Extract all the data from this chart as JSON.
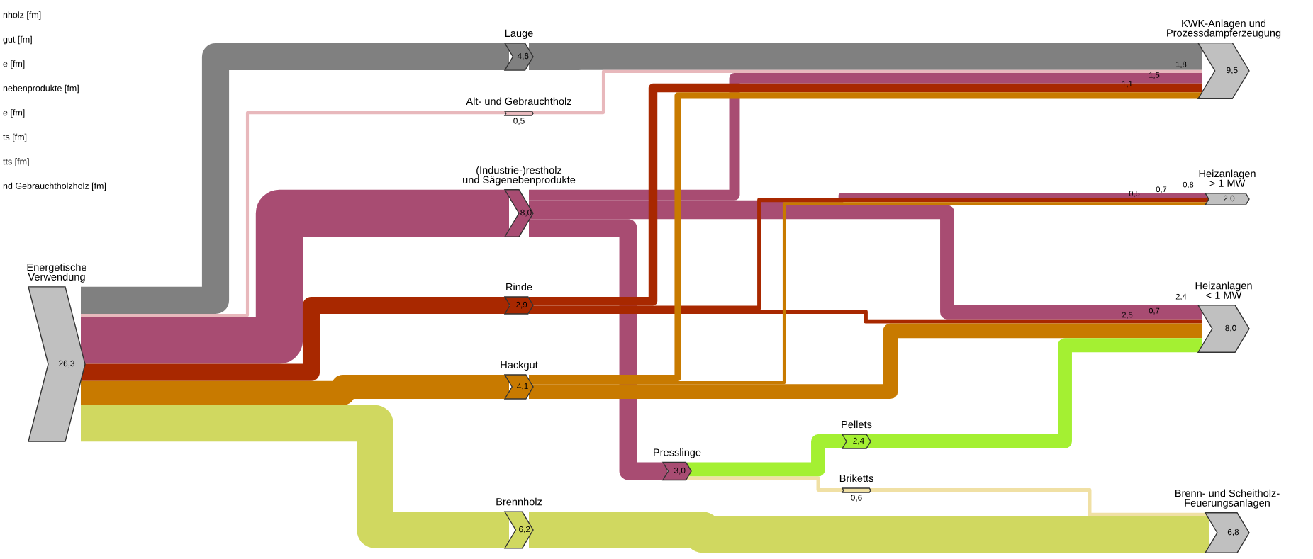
{
  "chart_data": {
    "type": "other",
    "categories": [
      "Energetische\nVerwendung",
      "Lauge",
      "Alt- und Gebrauchtholz",
      "(Industrie-)restholz\nund Sägenebenprodukte",
      "Rinde",
      "Hackgut",
      "Brennholz",
      "Presslinge",
      "Pellets",
      "Briketts",
      "KWK-Anlagen und\nProzessdampferzeugung",
      "Heizanlagen\n> 1 MW",
      "Heizanlagen\n< 1 MW",
      "Brenn- und Scheitholz-\nFeuerungsanlagen"
    ],
    "values": [
      26.3,
      null,
      null,
      null,
      null,
      null,
      null,
      null,
      null,
      null,
      9.5,
      2.0,
      8.0,
      6.8
    ],
    "value_labels": [
      "26,3",
      null,
      null,
      null,
      null,
      null,
      null,
      null,
      null,
      null,
      "9,5",
      "2,0",
      "8,0",
      "6,8"
    ],
    "colors": [
      "#c0c0c0",
      "#c0c0c0",
      "#c0c0c0",
      "#c0c0c0",
      "#c0c0c0",
      "#c0c0c0",
      "#c0c0c0",
      "#c0c0c0",
      "#c0c0c0",
      "#c0c0c0",
      "#c0c0c0",
      "#c0c0c0",
      "#c0c0c0",
      "#c0c0c0"
    ],
    "series": [
      {
        "color": "#808080",
        "values": [
          null,
          4.6,
          null,
          null,
          null,
          null,
          null,
          null,
          null,
          null,
          null,
          null,
          null,
          null
        ],
        "value_labels": [
          null,
          "4,6",
          null,
          null,
          null,
          null,
          null,
          null,
          null,
          null,
          null,
          null,
          null,
          null
        ]
      },
      {
        "color": "#e8b8bc",
        "values": [
          null,
          null,
          0.5,
          null,
          null,
          null,
          null,
          null,
          null,
          null,
          null,
          null,
          null,
          null
        ],
        "value_labels": [
          null,
          null,
          "0,5",
          null,
          null,
          null,
          null,
          null,
          null,
          null,
          null,
          null,
          null,
          null
        ]
      },
      {
        "color": "#a84c72",
        "values": [
          null,
          null,
          null,
          8.0,
          null,
          null,
          null,
          3.0,
          null,
          null,
          1.8,
          0.8,
          2.4,
          null
        ],
        "value_labels": [
          null,
          null,
          null,
          "8,0",
          null,
          null,
          null,
          "3,0",
          null,
          null,
          "1,8",
          "0,8",
          "2,4",
          null
        ]
      },
      {
        "color": "#a82800",
        "values": [
          null,
          null,
          null,
          null,
          2.9,
          null,
          null,
          null,
          null,
          null,
          1.5,
          0.7,
          0.7,
          null
        ],
        "value_labels": [
          null,
          null,
          null,
          null,
          "2,9",
          null,
          null,
          null,
          null,
          null,
          "1,5",
          "0,7",
          "0,7",
          null
        ]
      },
      {
        "color": "#c87a00",
        "values": [
          null,
          null,
          null,
          null,
          null,
          4.1,
          null,
          null,
          null,
          null,
          1.1,
          0.5,
          2.5,
          null
        ],
        "value_labels": [
          null,
          null,
          null,
          null,
          null,
          "4,1",
          null,
          null,
          null,
          null,
          "1,1",
          "0,5",
          "2,5",
          null
        ]
      },
      {
        "color": "#d0d860",
        "values": [
          null,
          null,
          null,
          null,
          null,
          null,
          6.2,
          null,
          null,
          null,
          null,
          null,
          null,
          null
        ],
        "value_labels": [
          null,
          null,
          null,
          null,
          null,
          null,
          "6,2",
          null,
          null,
          null,
          null,
          null,
          null,
          null
        ]
      },
      {
        "color": "#a4f032",
        "values": [
          null,
          null,
          null,
          null,
          null,
          null,
          null,
          null,
          2.4,
          null,
          null,
          null,
          null,
          null
        ],
        "value_labels": [
          null,
          null,
          null,
          null,
          null,
          null,
          null,
          null,
          "2,4",
          null,
          null,
          null,
          null,
          null
        ]
      },
      {
        "color": "#f0e0a4",
        "values": [
          null,
          null,
          null,
          null,
          null,
          null,
          null,
          null,
          null,
          0.6,
          null,
          null,
          null,
          null
        ],
        "value_labels": [
          null,
          null,
          null,
          null,
          null,
          null,
          null,
          null,
          null,
          "0,6",
          null,
          null,
          null,
          null
        ]
      }
    ],
    "annotations": [
      "nholz [fm]",
      "gut [fm]",
      "e [fm]",
      "nebenprodukte [fm]",
      "e [fm]",
      "ts [fm]",
      "tts [fm]",
      "nd Gebrauchtholzholz [fm]"
    ]
  }
}
